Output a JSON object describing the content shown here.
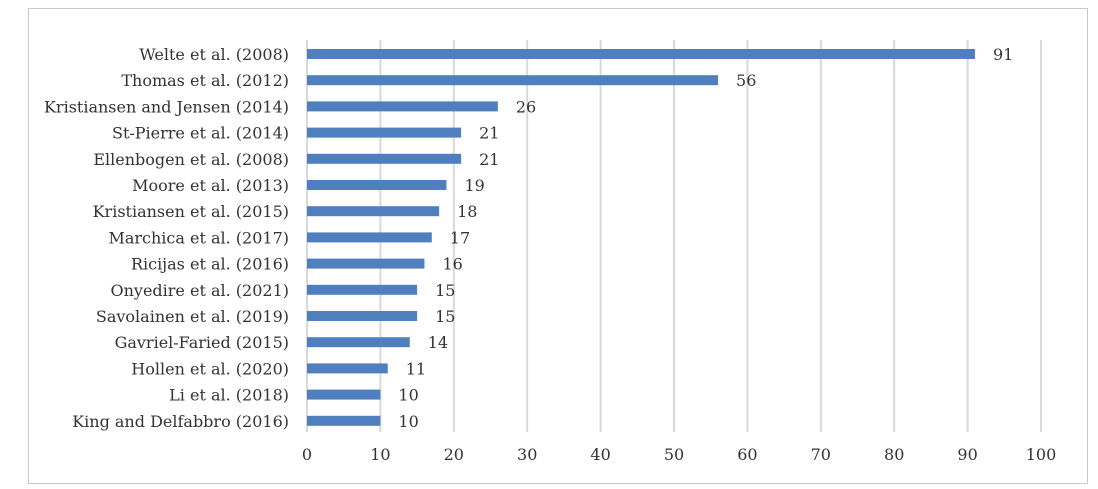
{
  "chart_data": {
    "type": "bar",
    "orientation": "horizontal",
    "categories": [
      "Welte et al. (2008)",
      "Thomas et al. (2012)",
      "Kristiansen and Jensen (2014)",
      "St-Pierre et al. (2014)",
      "Ellenbogen et al. (2008)",
      "Moore et al. (2013)",
      "Kristiansen et al. (2015)",
      "Marchica et al. (2017)",
      "Ricijas et al. (2016)",
      "Onyedire et al. (2021)",
      "Savolainen et al. (2019)",
      "Gavriel-Faried (2015)",
      "Hollen et al. (2020)",
      "Li et al. (2018)",
      "King and Delfabbro (2016)"
    ],
    "values": [
      91,
      56,
      26,
      21,
      21,
      19,
      18,
      17,
      16,
      15,
      15,
      14,
      11,
      10,
      10
    ],
    "data_labels": [
      "91",
      "56",
      "26",
      "21",
      "21",
      "19",
      "18",
      "17",
      "16",
      "15",
      "15",
      "14",
      "11",
      "10",
      "10"
    ],
    "xlim": [
      0,
      100
    ],
    "xticks": [
      0,
      10,
      20,
      30,
      40,
      50,
      60,
      70,
      80,
      90,
      100
    ],
    "xtick_labels": [
      "0",
      "10",
      "20",
      "30",
      "40",
      "50",
      "60",
      "70",
      "80",
      "90",
      "100"
    ],
    "grid": true,
    "bar_color": "#4f7fbf",
    "grid_color": "#d9d9d9"
  }
}
